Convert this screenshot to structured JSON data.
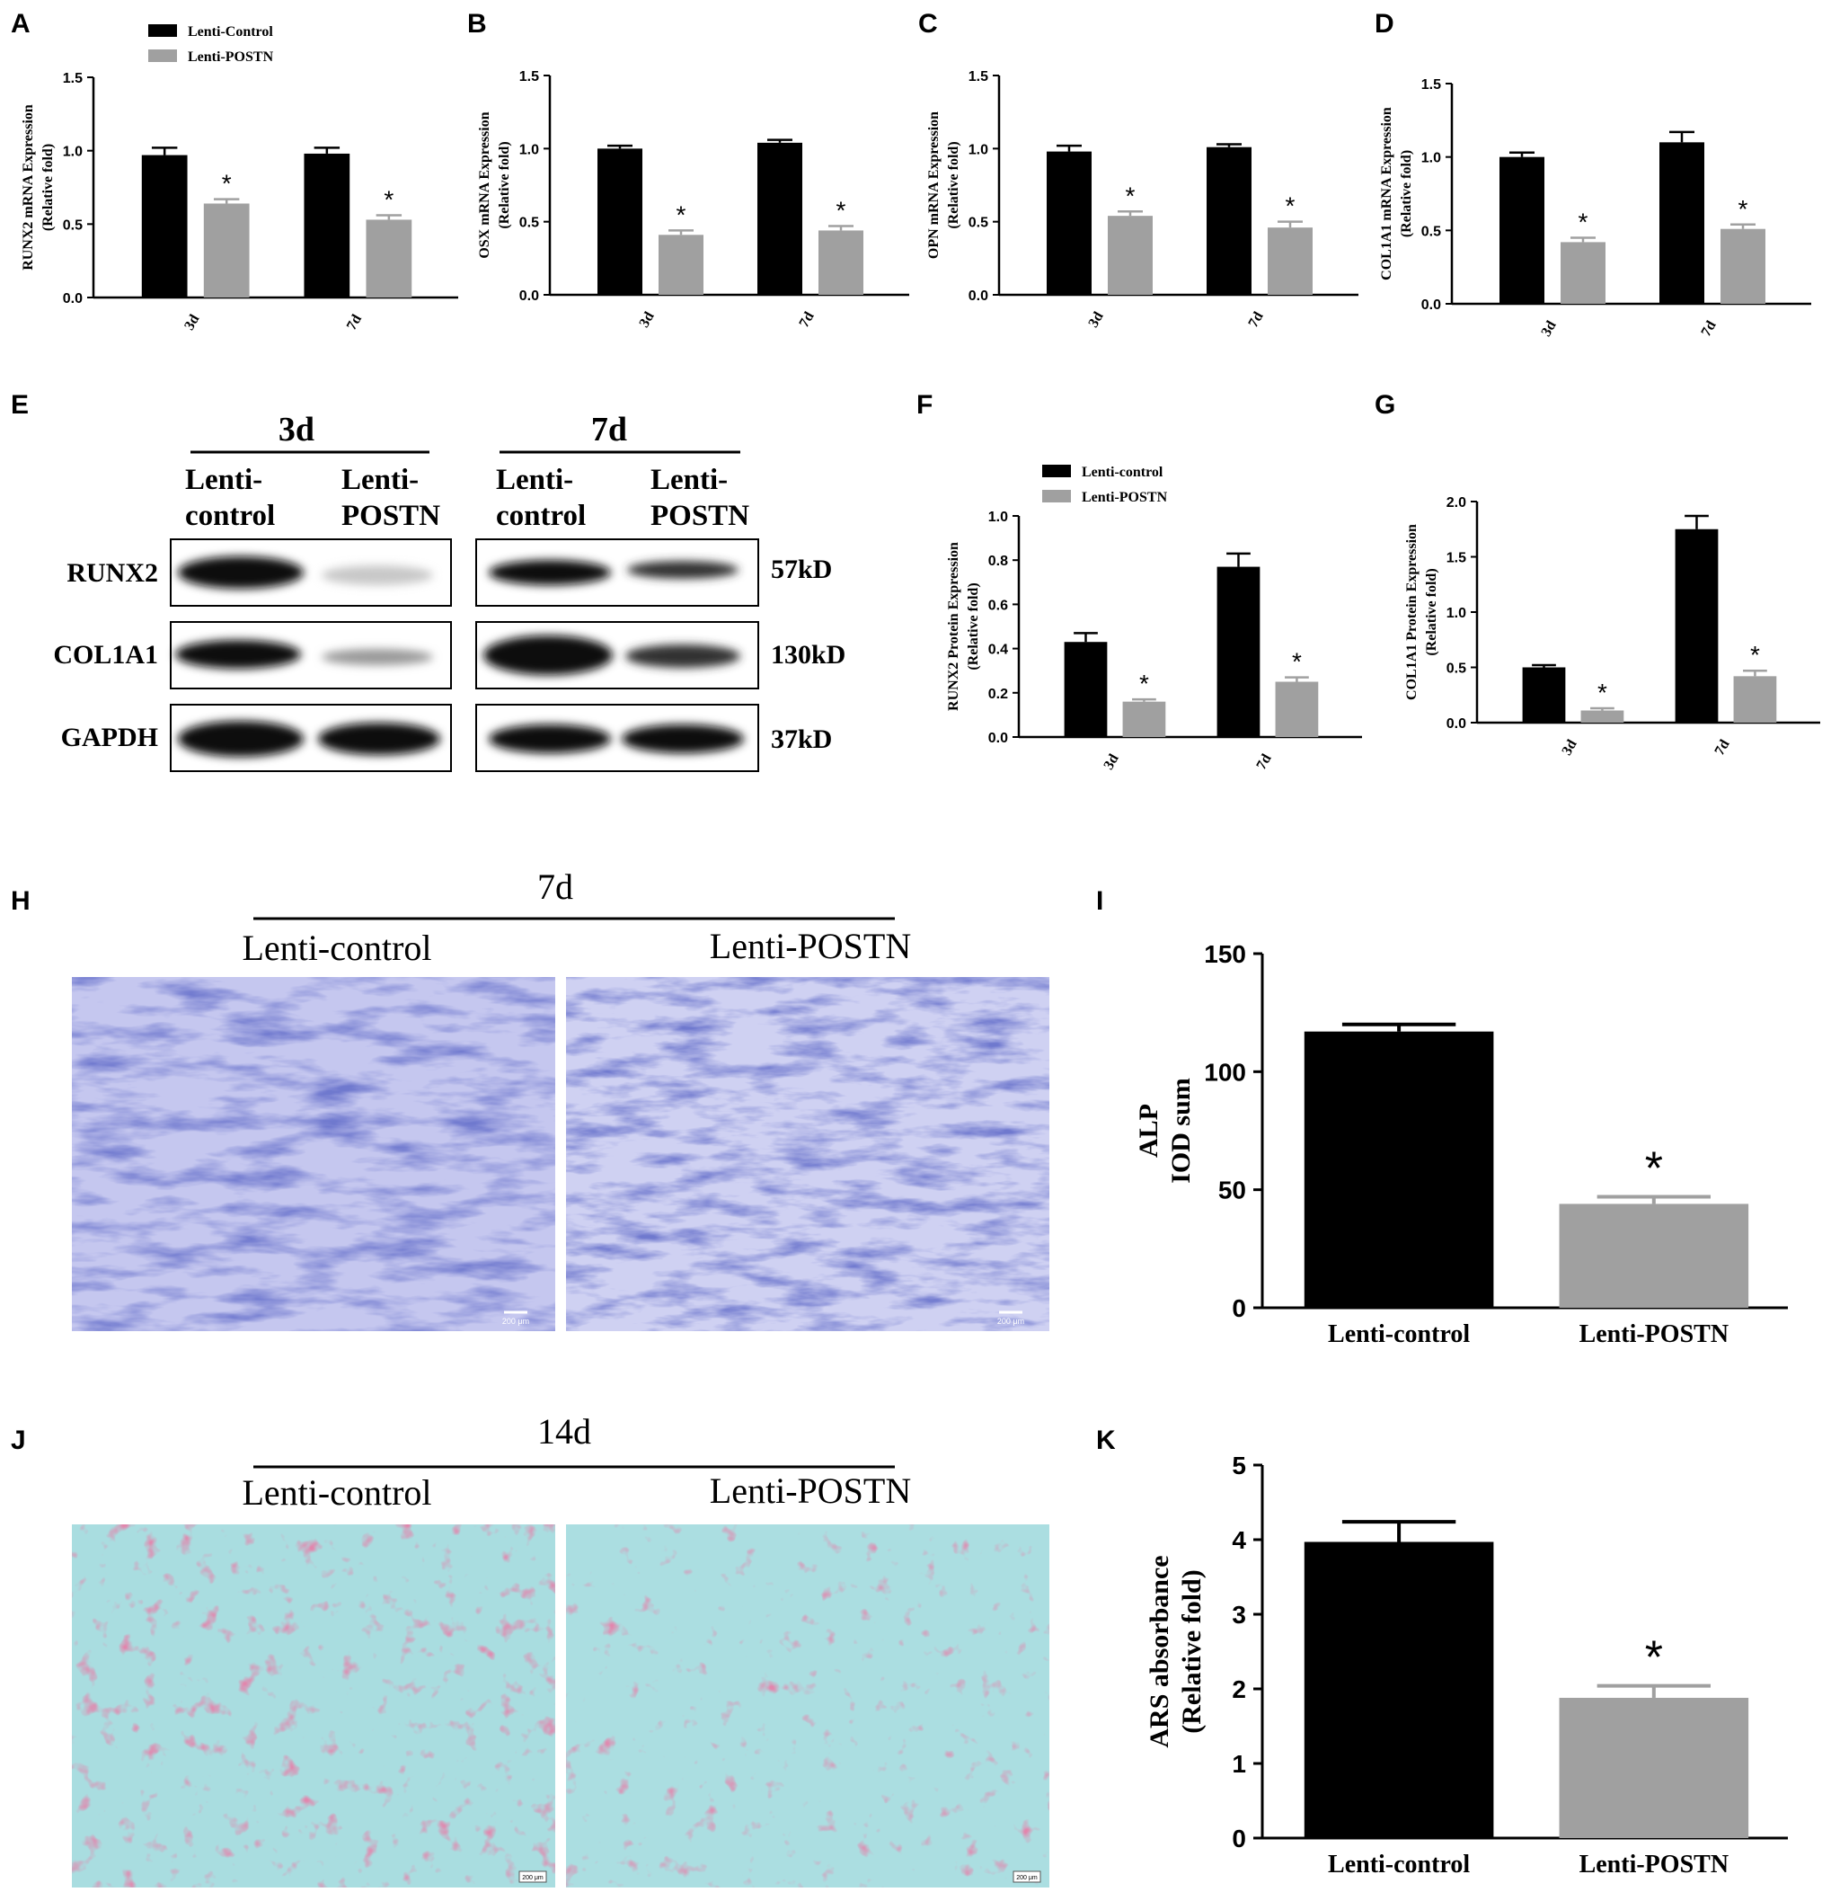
{
  "panel_labels": [
    "A",
    "B",
    "C",
    "D",
    "E",
    "F",
    "G",
    "H",
    "I",
    "J",
    "K"
  ],
  "colors": {
    "control": "#000000",
    "postn": "#a0a0a0",
    "alp_stain": "#4a4fc2",
    "ars_bg": "#a8dde0",
    "ars_stain": "#c4426c"
  },
  "western": {
    "groups": [
      "3d",
      "7d"
    ],
    "lanes": [
      {
        "top": "Lenti-",
        "bottom": "control"
      },
      {
        "top": "Lenti-",
        "bottom": "POSTN"
      },
      {
        "top": "Lenti-",
        "bottom": "control"
      },
      {
        "top": "Lenti-",
        "bottom": "POSTN"
      }
    ],
    "proteins": [
      "RUNX2",
      "COL1A1",
      "GAPDH"
    ],
    "sizes": [
      "57kD",
      "130kD",
      "37kD"
    ]
  },
  "micro_h": {
    "title": "7d",
    "labels": [
      "Lenti-control",
      "Lenti-POSTN"
    ],
    "scale": "200 μm"
  },
  "micro_j": {
    "title": "14d",
    "labels": [
      "Lenti-control",
      "Lenti-POSTN"
    ],
    "scale": "200 μm"
  },
  "chart_data": [
    {
      "id": "A",
      "type": "bar",
      "categories": [
        "3d",
        "7d"
      ],
      "ylabel1": "RUNX2 mRNA Expression",
      "ylabel2": "(Relative fold)",
      "ylim": [
        0,
        1.5
      ],
      "ticks": [
        "0.0",
        "0.5",
        "1.0",
        "1.5"
      ],
      "legend": [
        "Lenti-Control",
        "Lenti-POSTN"
      ],
      "series": [
        {
          "name": "Lenti-Control",
          "values": [
            0.97,
            0.98
          ],
          "errors": [
            0.05,
            0.04
          ]
        },
        {
          "name": "Lenti-POSTN",
          "values": [
            0.64,
            0.53
          ],
          "errors": [
            0.03,
            0.03
          ]
        }
      ],
      "annotations": [
        "*",
        "*"
      ]
    },
    {
      "id": "B",
      "type": "bar",
      "categories": [
        "3d",
        "7d"
      ],
      "ylabel1": "OSX mRNA Expression",
      "ylabel2": "(Relative fold)",
      "ylim": [
        0,
        1.5
      ],
      "ticks": [
        "0.0",
        "0.5",
        "1.0",
        "1.5"
      ],
      "series": [
        {
          "name": "Lenti-Control",
          "values": [
            1.0,
            1.04
          ],
          "errors": [
            0.02,
            0.02
          ]
        },
        {
          "name": "Lenti-POSTN",
          "values": [
            0.41,
            0.44
          ],
          "errors": [
            0.03,
            0.03
          ]
        }
      ],
      "annotations": [
        "*",
        "*"
      ]
    },
    {
      "id": "C",
      "type": "bar",
      "categories": [
        "3d",
        "7d"
      ],
      "ylabel1": "OPN mRNA Expression",
      "ylabel2": "(Relative fold)",
      "ylim": [
        0,
        1.5
      ],
      "ticks": [
        "0.0",
        "0.5",
        "1.0",
        "1.5"
      ],
      "series": [
        {
          "name": "Lenti-Control",
          "values": [
            0.98,
            1.01
          ],
          "errors": [
            0.04,
            0.02
          ]
        },
        {
          "name": "Lenti-POSTN",
          "values": [
            0.54,
            0.46
          ],
          "errors": [
            0.03,
            0.04
          ]
        }
      ],
      "annotations": [
        "*",
        "*"
      ]
    },
    {
      "id": "D",
      "type": "bar",
      "categories": [
        "3d",
        "7d"
      ],
      "ylabel1": "COL1A1 mRNA Expression",
      "ylabel2": "(Relative fold)",
      "ylim": [
        0,
        1.5
      ],
      "ticks": [
        "0.0",
        "0.5",
        "1.0",
        "1.5"
      ],
      "series": [
        {
          "name": "Lenti-Control",
          "values": [
            1.0,
            1.1
          ],
          "errors": [
            0.03,
            0.07
          ]
        },
        {
          "name": "Lenti-POSTN",
          "values": [
            0.42,
            0.51
          ],
          "errors": [
            0.03,
            0.03
          ]
        }
      ],
      "annotations": [
        "*",
        "*"
      ]
    },
    {
      "id": "F",
      "type": "bar",
      "categories": [
        "3d",
        "7d"
      ],
      "ylabel1": "RUNX2 Protein Expression",
      "ylabel2": "(Relative fold)",
      "ylim": [
        0,
        1.0
      ],
      "ticks": [
        "0.0",
        "0.2",
        "0.4",
        "0.6",
        "0.8",
        "1.0"
      ],
      "legend": [
        "Lenti-control",
        "Lenti-POSTN"
      ],
      "series": [
        {
          "name": "Lenti-control",
          "values": [
            0.43,
            0.77
          ],
          "errors": [
            0.04,
            0.06
          ]
        },
        {
          "name": "Lenti-POSTN",
          "values": [
            0.16,
            0.25
          ],
          "errors": [
            0.01,
            0.02
          ]
        }
      ],
      "annotations": [
        "*",
        "*"
      ]
    },
    {
      "id": "G",
      "type": "bar",
      "categories": [
        "3d",
        "7d"
      ],
      "ylabel1": "COL1A1 Protein Expression",
      "ylabel2": "(Relative fold)",
      "ylim": [
        0,
        2.0
      ],
      "ticks": [
        "0.0",
        "0.5",
        "1.0",
        "1.5",
        "2.0"
      ],
      "series": [
        {
          "name": "Lenti-control",
          "values": [
            0.5,
            1.75
          ],
          "errors": [
            0.02,
            0.12
          ]
        },
        {
          "name": "Lenti-POSTN",
          "values": [
            0.11,
            0.42
          ],
          "errors": [
            0.02,
            0.05
          ]
        }
      ],
      "annotations": [
        "*",
        "*"
      ]
    },
    {
      "id": "I",
      "type": "bar",
      "categories": [
        "Lenti-control",
        "Lenti-POSTN"
      ],
      "ylabel1": "ALP",
      "ylabel2": "IOD sum",
      "ylim": [
        0,
        150
      ],
      "ticks": [
        "0",
        "50",
        "100",
        "150"
      ],
      "values": [
        117,
        44
      ],
      "errors": [
        3,
        3
      ],
      "annotation": "*"
    },
    {
      "id": "K",
      "type": "bar",
      "categories": [
        "Lenti-control",
        "Lenti-POSTN"
      ],
      "ylabel1": "ARS absorbance",
      "ylabel2": "(Relative fold)",
      "ylim": [
        0,
        5
      ],
      "ticks": [
        "0",
        "1",
        "2",
        "3",
        "4",
        "5"
      ],
      "values": [
        3.97,
        1.88
      ],
      "errors": [
        0.27,
        0.16
      ],
      "annotation": "*"
    }
  ]
}
